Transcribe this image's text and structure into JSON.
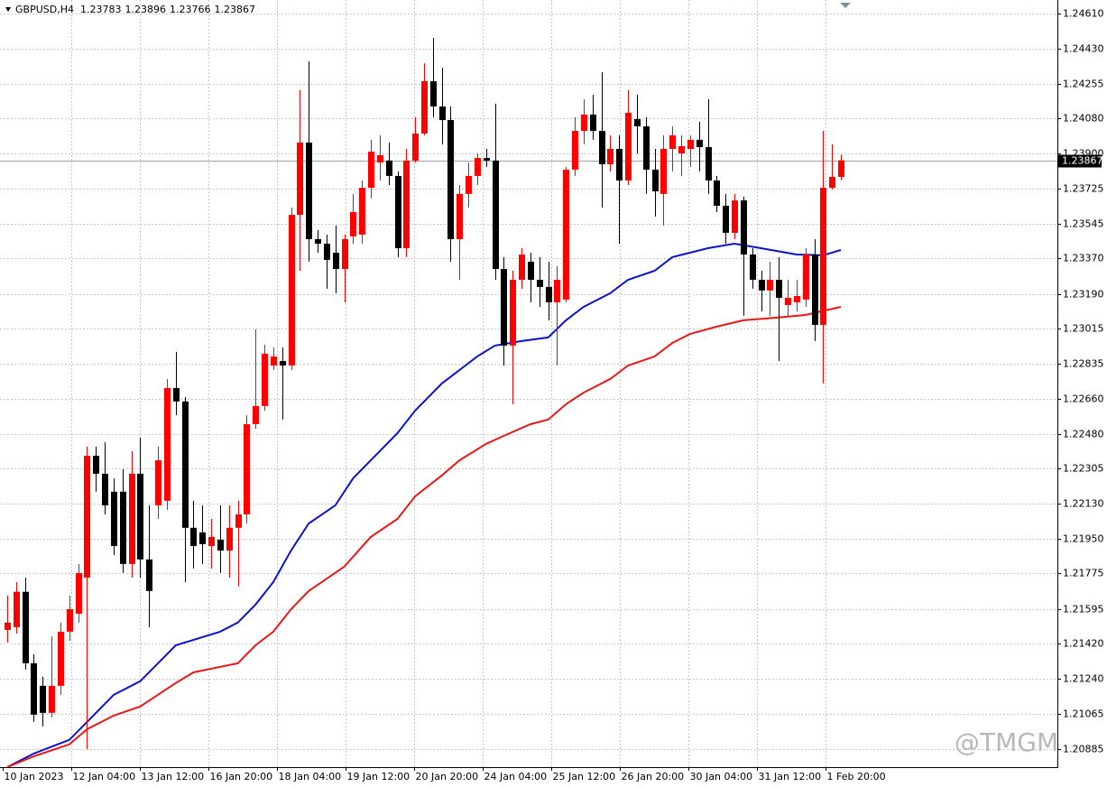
{
  "chart_data": {
    "type": "candlestick",
    "symbol": "GBPUSD,H4",
    "watermark": "@TMGM",
    "up_color": "#ff0000",
    "down_color": "#000000",
    "grid": true,
    "ylim": [
      1.20794,
      1.24679
    ],
    "yticks": [
      {
        "value": 1.2461,
        "label": "1.24610"
      },
      {
        "value": 1.2443,
        "label": "1.24430"
      },
      {
        "value": 1.24255,
        "label": "1.24255"
      },
      {
        "value": 1.2408,
        "label": "1.24080"
      },
      {
        "value": 1.239,
        "label": "1.23900"
      },
      {
        "value": 1.23725,
        "label": "1.23725"
      },
      {
        "value": 1.23545,
        "label": "1.23545"
      },
      {
        "value": 1.2337,
        "label": "1.23370"
      },
      {
        "value": 1.2319,
        "label": "1.23190"
      },
      {
        "value": 1.23015,
        "label": "1.23015"
      },
      {
        "value": 1.22835,
        "label": "1.22835"
      },
      {
        "value": 1.2266,
        "label": "1.22660"
      },
      {
        "value": 1.2248,
        "label": "1.22480"
      },
      {
        "value": 1.22305,
        "label": "1.22305"
      },
      {
        "value": 1.2213,
        "label": "1.22130"
      },
      {
        "value": 1.2195,
        "label": "1.21950"
      },
      {
        "value": 1.21775,
        "label": "1.21775"
      },
      {
        "value": 1.21595,
        "label": "1.21595"
      },
      {
        "value": 1.2142,
        "label": "1.21420"
      },
      {
        "value": 1.2124,
        "label": "1.21240"
      },
      {
        "value": 1.21065,
        "label": "1.21065"
      },
      {
        "value": 1.20885,
        "label": "1.20885"
      }
    ],
    "xlabels": [
      "10 Jan 2023",
      "12 Jan 04:00",
      "13 Jan 12:00",
      "16 Jan 20:00",
      "18 Jan 04:00",
      "19 Jan 12:00",
      "20 Jan 20:00",
      "24 Jan 04:00",
      "25 Jan 12:00",
      "26 Jan 20:00",
      "30 Jan 04:00",
      "31 Jan 12:00",
      "1 Feb 20:00"
    ],
    "candles": [
      {
        "o": 1.21489,
        "h": 1.21663,
        "l": 1.21425,
        "c": 1.21526
      },
      {
        "o": 1.21503,
        "h": 1.21731,
        "l": 1.21471,
        "c": 1.21682
      },
      {
        "o": 1.21682,
        "h": 1.21754,
        "l": 1.21288,
        "c": 1.2132
      },
      {
        "o": 1.2132,
        "h": 1.21366,
        "l": 1.21023,
        "c": 1.2106
      },
      {
        "o": 1.21206,
        "h": 1.21252,
        "l": 1.21,
        "c": 1.21069
      },
      {
        "o": 1.21069,
        "h": 1.21457,
        "l": 1.21046,
        "c": 1.21206
      },
      {
        "o": 1.21206,
        "h": 1.21526,
        "l": 1.2116,
        "c": 1.2148
      },
      {
        "o": 1.2148,
        "h": 1.21663,
        "l": 1.21434,
        "c": 1.21594
      },
      {
        "o": 1.21571,
        "h": 1.21823,
        "l": 1.21526,
        "c": 1.21777
      },
      {
        "o": 1.21754,
        "h": 1.22417,
        "l": 1.20886,
        "c": 1.22371
      },
      {
        "o": 1.22371,
        "h": 1.22417,
        "l": 1.22189,
        "c": 1.2228
      },
      {
        "o": 1.2228,
        "h": 1.2244,
        "l": 1.22074,
        "c": 1.2212
      },
      {
        "o": 1.22189,
        "h": 1.22257,
        "l": 1.21868,
        "c": 1.21914
      },
      {
        "o": 1.22189,
        "h": 1.22303,
        "l": 1.21777,
        "c": 1.21823
      },
      {
        "o": 1.21823,
        "h": 1.22394,
        "l": 1.21754,
        "c": 1.2228
      },
      {
        "o": 1.2228,
        "h": 1.22463,
        "l": 1.21754,
        "c": 1.21846
      },
      {
        "o": 1.21846,
        "h": 1.2212,
        "l": 1.21503,
        "c": 1.21686
      },
      {
        "o": 1.2212,
        "h": 1.22417,
        "l": 1.22051,
        "c": 1.22348
      },
      {
        "o": 1.22143,
        "h": 1.2276,
        "l": 1.22097,
        "c": 1.22714
      },
      {
        "o": 1.22714,
        "h": 1.22897,
        "l": 1.22577,
        "c": 1.22646
      },
      {
        "o": 1.22646,
        "h": 1.22668,
        "l": 1.21731,
        "c": 1.22006
      },
      {
        "o": 1.22006,
        "h": 1.22143,
        "l": 1.218,
        "c": 1.21914
      },
      {
        "o": 1.21983,
        "h": 1.2212,
        "l": 1.21823,
        "c": 1.21923
      },
      {
        "o": 1.21914,
        "h": 1.22051,
        "l": 1.218,
        "c": 1.2196
      },
      {
        "o": 1.21946,
        "h": 1.2212,
        "l": 1.21777,
        "c": 1.21891
      },
      {
        "o": 1.21891,
        "h": 1.2212,
        "l": 1.21754,
        "c": 1.22006
      },
      {
        "o": 1.22006,
        "h": 1.22143,
        "l": 1.21709,
        "c": 1.22074
      },
      {
        "o": 1.22074,
        "h": 1.22577,
        "l": 1.22028,
        "c": 1.22531
      },
      {
        "o": 1.22531,
        "h": 1.23011,
        "l": 1.22508,
        "c": 1.22623
      },
      {
        "o": 1.22623,
        "h": 1.22933,
        "l": 1.226,
        "c": 1.22888
      },
      {
        "o": 1.22828,
        "h": 1.2292,
        "l": 1.22805,
        "c": 1.22874
      },
      {
        "o": 1.22851,
        "h": 1.2292,
        "l": 1.22554,
        "c": 1.22828
      },
      {
        "o": 1.22828,
        "h": 1.23628,
        "l": 1.22805,
        "c": 1.23591
      },
      {
        "o": 1.23591,
        "h": 1.24222,
        "l": 1.23308,
        "c": 1.23957
      },
      {
        "o": 1.23957,
        "h": 1.24368,
        "l": 1.23354,
        "c": 1.23468
      },
      {
        "o": 1.23468,
        "h": 1.23514,
        "l": 1.23399,
        "c": 1.23445
      },
      {
        "o": 1.23445,
        "h": 1.23491,
        "l": 1.23217,
        "c": 1.23363
      },
      {
        "o": 1.23399,
        "h": 1.23537,
        "l": 1.23194,
        "c": 1.23317
      },
      {
        "o": 1.23317,
        "h": 1.23491,
        "l": 1.23148,
        "c": 1.23468
      },
      {
        "o": 1.23482,
        "h": 1.23697,
        "l": 1.23445,
        "c": 1.23605
      },
      {
        "o": 1.23491,
        "h": 1.23765,
        "l": 1.23445,
        "c": 1.23728
      },
      {
        "o": 1.23728,
        "h": 1.23971,
        "l": 1.23674,
        "c": 1.23911
      },
      {
        "o": 1.23856,
        "h": 1.23994,
        "l": 1.23765,
        "c": 1.23893
      },
      {
        "o": 1.23866,
        "h": 1.23957,
        "l": 1.23742,
        "c": 1.23788
      },
      {
        "o": 1.23788,
        "h": 1.23811,
        "l": 1.23377,
        "c": 1.23422
      },
      {
        "o": 1.23422,
        "h": 1.23925,
        "l": 1.23377,
        "c": 1.23866
      },
      {
        "o": 1.23866,
        "h": 1.24085,
        "l": 1.23856,
        "c": 1.24003
      },
      {
        "o": 1.24003,
        "h": 1.24359,
        "l": 1.23994,
        "c": 1.24268
      },
      {
        "o": 1.24268,
        "h": 1.24487,
        "l": 1.24085,
        "c": 1.2414
      },
      {
        "o": 1.2414,
        "h": 1.24336,
        "l": 1.23948,
        "c": 1.24071
      },
      {
        "o": 1.24071,
        "h": 1.2414,
        "l": 1.23354,
        "c": 1.23468
      },
      {
        "o": 1.23468,
        "h": 1.23742,
        "l": 1.23262,
        "c": 1.23697
      },
      {
        "o": 1.23697,
        "h": 1.23856,
        "l": 1.23628,
        "c": 1.23788
      },
      {
        "o": 1.23788,
        "h": 1.23902,
        "l": 1.23742,
        "c": 1.23879
      },
      {
        "o": 1.23879,
        "h": 1.23925,
        "l": 1.23834,
        "c": 1.23866
      },
      {
        "o": 1.23866,
        "h": 1.24154,
        "l": 1.23262,
        "c": 1.23317
      },
      {
        "o": 1.23317,
        "h": 1.23377,
        "l": 1.22828,
        "c": 1.22929
      },
      {
        "o": 1.22929,
        "h": 1.23308,
        "l": 1.22632,
        "c": 1.23262
      },
      {
        "o": 1.23262,
        "h": 1.23422,
        "l": 1.23217,
        "c": 1.2339
      },
      {
        "o": 1.23354,
        "h": 1.23399,
        "l": 1.23148,
        "c": 1.23262
      },
      {
        "o": 1.23262,
        "h": 1.23377,
        "l": 1.23125,
        "c": 1.23226
      },
      {
        "o": 1.23226,
        "h": 1.23354,
        "l": 1.23057,
        "c": 1.23148
      },
      {
        "o": 1.23148,
        "h": 1.23331,
        "l": 1.22828,
        "c": 1.23262
      },
      {
        "o": 1.23162,
        "h": 1.23834,
        "l": 1.23148,
        "c": 1.2382
      },
      {
        "o": 1.2382,
        "h": 1.24085,
        "l": 1.23788,
        "c": 1.24016
      },
      {
        "o": 1.24016,
        "h": 1.24176,
        "l": 1.23948,
        "c": 1.24099
      },
      {
        "o": 1.24099,
        "h": 1.24199,
        "l": 1.23971,
        "c": 1.24016
      },
      {
        "o": 1.24016,
        "h": 1.24313,
        "l": 1.23628,
        "c": 1.23847
      },
      {
        "o": 1.23847,
        "h": 1.23994,
        "l": 1.23811,
        "c": 1.23925
      },
      {
        "o": 1.23925,
        "h": 1.23994,
        "l": 1.23445,
        "c": 1.23765
      },
      {
        "o": 1.23765,
        "h": 1.24222,
        "l": 1.23742,
        "c": 1.24108
      },
      {
        "o": 1.24076,
        "h": 1.24199,
        "l": 1.23902,
        "c": 1.24039
      },
      {
        "o": 1.24039,
        "h": 1.24085,
        "l": 1.23697,
        "c": 1.2382
      },
      {
        "o": 1.2382,
        "h": 1.23925,
        "l": 1.23582,
        "c": 1.2371
      },
      {
        "o": 1.23697,
        "h": 1.23994,
        "l": 1.23537,
        "c": 1.23925
      },
      {
        "o": 1.23925,
        "h": 1.24039,
        "l": 1.23811,
        "c": 1.23994
      },
      {
        "o": 1.23902,
        "h": 1.23994,
        "l": 1.23788,
        "c": 1.23939
      },
      {
        "o": 1.23925,
        "h": 1.23994,
        "l": 1.23834,
        "c": 1.23971
      },
      {
        "o": 1.23971,
        "h": 1.24062,
        "l": 1.23811,
        "c": 1.23934
      },
      {
        "o": 1.23934,
        "h": 1.24176,
        "l": 1.23697,
        "c": 1.23765
      },
      {
        "o": 1.23765,
        "h": 1.23788,
        "l": 1.23605,
        "c": 1.23637
      },
      {
        "o": 1.23637,
        "h": 1.23697,
        "l": 1.23445,
        "c": 1.235
      },
      {
        "o": 1.235,
        "h": 1.23697,
        "l": 1.23468,
        "c": 1.23664
      },
      {
        "o": 1.23664,
        "h": 1.23683,
        "l": 1.2308,
        "c": 1.2339
      },
      {
        "o": 1.2339,
        "h": 1.23422,
        "l": 1.23217,
        "c": 1.23262
      },
      {
        "o": 1.23262,
        "h": 1.23308,
        "l": 1.23102,
        "c": 1.23208
      },
      {
        "o": 1.23208,
        "h": 1.23354,
        "l": 1.2308,
        "c": 1.23262
      },
      {
        "o": 1.23262,
        "h": 1.23377,
        "l": 1.22851,
        "c": 1.23171
      },
      {
        "o": 1.23134,
        "h": 1.23262,
        "l": 1.2308,
        "c": 1.23171
      },
      {
        "o": 1.23148,
        "h": 1.23262,
        "l": 1.23102,
        "c": 1.2318
      },
      {
        "o": 1.23162,
        "h": 1.23422,
        "l": 1.23125,
        "c": 1.2339
      },
      {
        "o": 1.2339,
        "h": 1.23468,
        "l": 1.22952,
        "c": 1.23034
      },
      {
        "o": 1.23034,
        "h": 1.24016,
        "l": 1.22737,
        "c": 1.23728
      },
      {
        "o": 1.23728,
        "h": 1.23948,
        "l": 1.23719,
        "c": 1.23783
      },
      {
        "o": 1.23783,
        "h": 1.23896,
        "l": 1.23766,
        "c": 1.23867
      }
    ],
    "series": [
      {
        "color": "#0a14c8",
        "x": [
          0,
          3,
          7,
          9,
          12,
          15,
          17,
          19,
          24,
          26,
          28,
          30,
          32,
          34,
          37,
          39,
          42,
          44,
          46,
          49,
          51,
          53,
          55,
          58,
          61,
          63,
          65,
          68,
          70,
          73,
          75,
          79,
          82,
          85,
          89,
          92,
          94
        ],
        "values": [
          1.20794,
          1.20863,
          1.20932,
          1.21023,
          1.2116,
          1.21229,
          1.2132,
          1.21411,
          1.2148,
          1.21526,
          1.21617,
          1.21731,
          1.21891,
          1.22028,
          1.2212,
          1.22257,
          1.22394,
          1.22485,
          1.226,
          1.22737,
          1.22805,
          1.22874,
          1.22929,
          1.22952,
          1.2297,
          1.23057,
          1.23125,
          1.23194,
          1.23262,
          1.23308,
          1.23377,
          1.23422,
          1.23445,
          1.23422,
          1.2339,
          1.23386,
          1.23413
        ]
      },
      {
        "color": "#e81818",
        "x": [
          0,
          3,
          7,
          9,
          12,
          15,
          19,
          21,
          26,
          28,
          30,
          32,
          34,
          38,
          41,
          44,
          46,
          49,
          51,
          54,
          56,
          59,
          61,
          63,
          65,
          68,
          70,
          73,
          75,
          77,
          80,
          83,
          87,
          90,
          94
        ],
        "values": [
          1.20794,
          1.20849,
          1.20909,
          1.20986,
          1.21055,
          1.21101,
          1.2122,
          1.21274,
          1.2132,
          1.21411,
          1.2148,
          1.21594,
          1.21686,
          1.21809,
          1.2196,
          1.22051,
          1.22166,
          1.22271,
          1.22348,
          1.22431,
          1.22472,
          1.22531,
          1.22554,
          1.22632,
          1.22691,
          1.2276,
          1.22828,
          1.22874,
          1.22942,
          1.22988,
          1.23025,
          1.23057,
          1.23071,
          1.23084,
          1.23125
        ]
      }
    ]
  }
}
